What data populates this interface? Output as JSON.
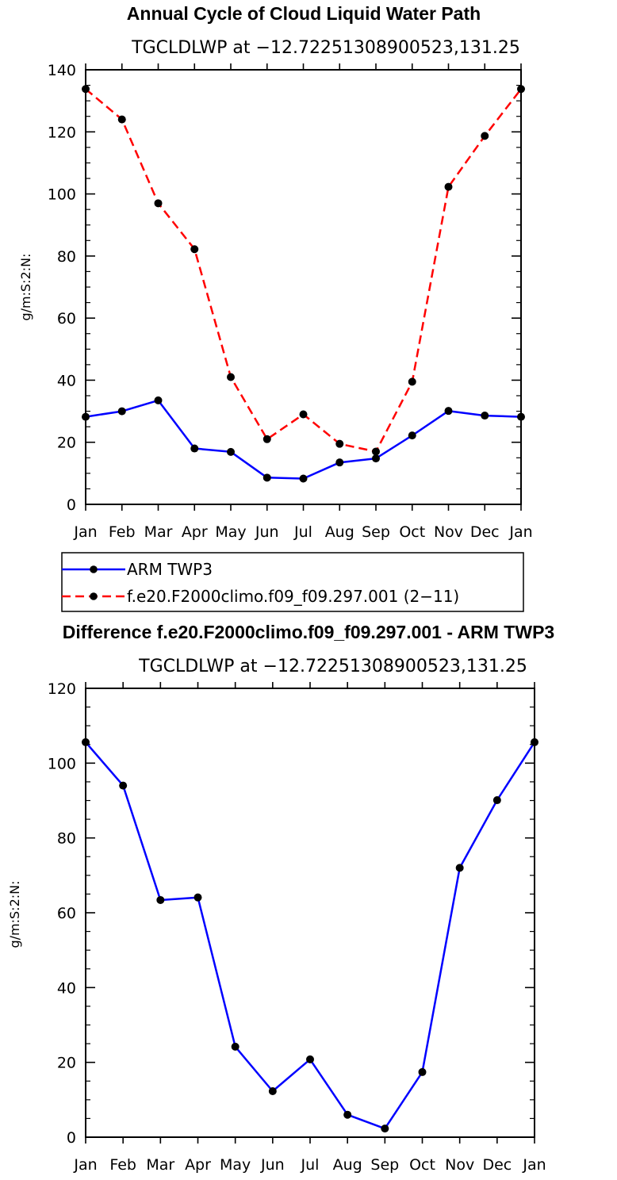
{
  "chart_data": [
    {
      "type": "line",
      "title": "Annual Cycle of Cloud Liquid Water Path",
      "subtitle": "TGCLDLWP at −12.72251308900523,131.25",
      "ylabel": "g/m:S:2:N:",
      "categories": [
        "Jan",
        "Feb",
        "Mar",
        "Apr",
        "May",
        "Jun",
        "Jul",
        "Aug",
        "Sep",
        "Oct",
        "Nov",
        "Dec",
        "Jan"
      ],
      "ylim": [
        0,
        140
      ],
      "yticks": [
        "0",
        "20",
        "40",
        "60",
        "80",
        "100",
        "120",
        "140"
      ],
      "legend_placement": "below",
      "series": [
        {
          "name": "ARM TWP3",
          "color": "#0000ff",
          "style": "solid",
          "values": [
            28.2,
            30.0,
            33.5,
            18.0,
            16.9,
            8.6,
            8.3,
            13.5,
            14.8,
            22.2,
            30.1,
            28.6,
            28.2
          ]
        },
        {
          "name": "f.e20.F2000climo.f09_f09.297.001 (2−11)",
          "color": "#ff0000",
          "style": "dashed",
          "values": [
            133.8,
            124.0,
            97.0,
            82.2,
            41.0,
            21.0,
            29.0,
            19.5,
            17.0,
            39.5,
            102.3,
            118.7,
            133.8
          ]
        }
      ]
    },
    {
      "type": "line",
      "title": "Difference f.e20.F2000climo.f09_f09.297.001 - ARM TWP3",
      "subtitle": "TGCLDLWP at −12.72251308900523,131.25",
      "ylabel": "g/m:S:2:N:",
      "categories": [
        "Jan",
        "Feb",
        "Mar",
        "Apr",
        "May",
        "Jun",
        "Jul",
        "Aug",
        "Sep",
        "Oct",
        "Nov",
        "Dec",
        "Jan"
      ],
      "ylim": [
        0,
        120
      ],
      "yticks": [
        "0",
        "20",
        "40",
        "60",
        "80",
        "100",
        "120"
      ],
      "series": [
        {
          "color": "#0000ff",
          "style": "solid",
          "values": [
            105.6,
            94.0,
            63.4,
            64.1,
            24.2,
            12.3,
            20.8,
            6.0,
            2.3,
            17.4,
            72.0,
            90.1,
            105.6
          ]
        }
      ]
    }
  ]
}
